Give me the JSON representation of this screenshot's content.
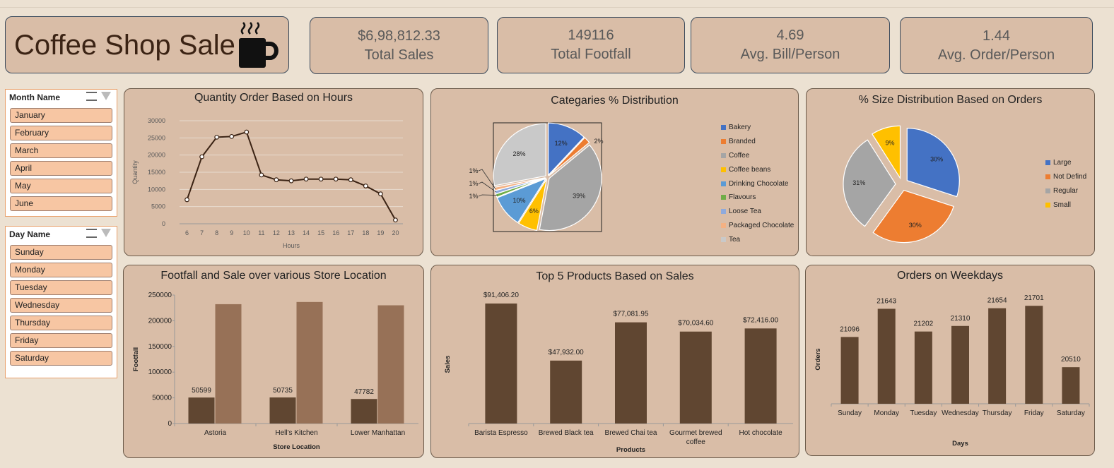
{
  "header": {
    "title": "Coffee Shop Sale",
    "icon": "coffee-cup-icon"
  },
  "kpis": [
    {
      "value": "$6,98,812.33",
      "label": "Total Sales"
    },
    {
      "value": "149116",
      "label": "Total Footfall"
    },
    {
      "value": "4.69",
      "label": "Avg. Bill/Person"
    },
    {
      "value": "1.44",
      "label": "Avg. Order/Person"
    }
  ],
  "slicers": {
    "month": {
      "title": "Month Name",
      "items": [
        "January",
        "February",
        "March",
        "April",
        "May",
        "June"
      ]
    },
    "day": {
      "title": "Day Name",
      "items": [
        "Sunday",
        "Monday",
        "Tuesday",
        "Wednesday",
        "Thursday",
        "Friday",
        "Saturday"
      ]
    }
  },
  "colors": {
    "bar_dark": "#604631",
    "bar_light": "#977157",
    "line": "#3b2314",
    "card": "#d9bda7"
  },
  "chart_data": [
    {
      "id": "hours",
      "type": "line",
      "title": "Quantity Order Based on Hours",
      "xlabel": "Hours",
      "ylabel": "Quantity",
      "x": [
        6,
        7,
        8,
        9,
        10,
        11,
        12,
        13,
        14,
        15,
        16,
        17,
        18,
        19,
        20
      ],
      "values": [
        7000,
        19500,
        25200,
        25400,
        26700,
        14200,
        12800,
        12500,
        13000,
        13000,
        13000,
        12800,
        11000,
        8700,
        1100
      ],
      "yticks": [
        "0",
        "5000",
        "10000",
        "15000",
        "20000",
        "25000",
        "30000"
      ],
      "ylim": [
        0,
        30000
      ],
      "grid": true
    },
    {
      "id": "categories",
      "type": "pie",
      "title": "Categaries % Distribution",
      "labels": [
        "Bakery",
        "Branded",
        "Coffee",
        "Coffee beans",
        "Drinking Chocolate",
        "Flavours",
        "Loose Tea",
        "Packaged Chocolate",
        "Tea"
      ],
      "values": [
        12,
        2,
        39,
        6,
        10,
        1,
        1,
        1,
        28
      ],
      "data_labels": [
        "12%",
        "2%",
        "39%",
        "6%",
        "10%",
        "1%",
        "1%",
        "1%",
        "28%"
      ],
      "colors": [
        "#4472c4",
        "#ed7d31",
        "#a5a5a5",
        "#ffc000",
        "#5b9bd5",
        "#70ad47",
        "#8faadc",
        "#f4b183",
        "#c9c9c9"
      ],
      "legend": "right"
    },
    {
      "id": "sizes",
      "type": "pie",
      "title": "% Size Distribution Based on Orders",
      "labels": [
        "Large",
        "Not Defind",
        "Regular",
        "Small"
      ],
      "values": [
        30,
        30,
        31,
        9
      ],
      "data_labels": [
        "30%",
        "30%",
        "31%",
        "9%"
      ],
      "colors": [
        "#4472c4",
        "#ed7d31",
        "#a5a5a5",
        "#ffc000"
      ],
      "legend": "right"
    },
    {
      "id": "stores",
      "type": "bar",
      "title": "Footfall and Sale over various Store Location",
      "xlabel": "Store Location",
      "ylabel": "Footfall",
      "categories": [
        "Astoria",
        "Hell's Kitchen",
        "Lower Manhattan"
      ],
      "series": [
        {
          "values": [
            50599,
            50735,
            47782
          ],
          "data_labels": [
            "50599",
            "50735",
            "47782"
          ]
        },
        {
          "values": [
            232244,
            236511,
            230057
          ]
        }
      ],
      "yticks": [
        "0",
        "50000",
        "100000",
        "150000",
        "200000",
        "250000"
      ],
      "ylim": [
        0,
        250000
      ]
    },
    {
      "id": "products",
      "type": "bar",
      "title": "Top 5 Products Based on Sales",
      "xlabel": "Products",
      "ylabel": "Sales",
      "categories": [
        "Barista Espresso",
        "Brewed Black tea",
        "Brewed Chai tea",
        "Gourmet brewed coffee",
        "Hot chocolate"
      ],
      "values": [
        91406.2,
        47932.0,
        77081.95,
        70034.6,
        72416.0
      ],
      "data_labels": [
        "$91,406.20",
        "$47,932.00",
        "$77,081.95",
        "$70,034.60",
        "$72,416.00"
      ],
      "ylim": [
        0,
        100000
      ]
    },
    {
      "id": "weekdays",
      "type": "bar",
      "title": "Orders on Weekdays",
      "xlabel": "Days",
      "ylabel": "Orders",
      "categories": [
        "Sunday",
        "Monday",
        "Tuesday",
        "Wednesday",
        "Thursday",
        "Friday",
        "Saturday"
      ],
      "values": [
        21096,
        21643,
        21202,
        21310,
        21654,
        21701,
        20510
      ],
      "data_labels": [
        "21096",
        "21643",
        "21202",
        "21310",
        "21654",
        "21701",
        "20510"
      ],
      "ylim": [
        19800,
        21800
      ]
    }
  ]
}
